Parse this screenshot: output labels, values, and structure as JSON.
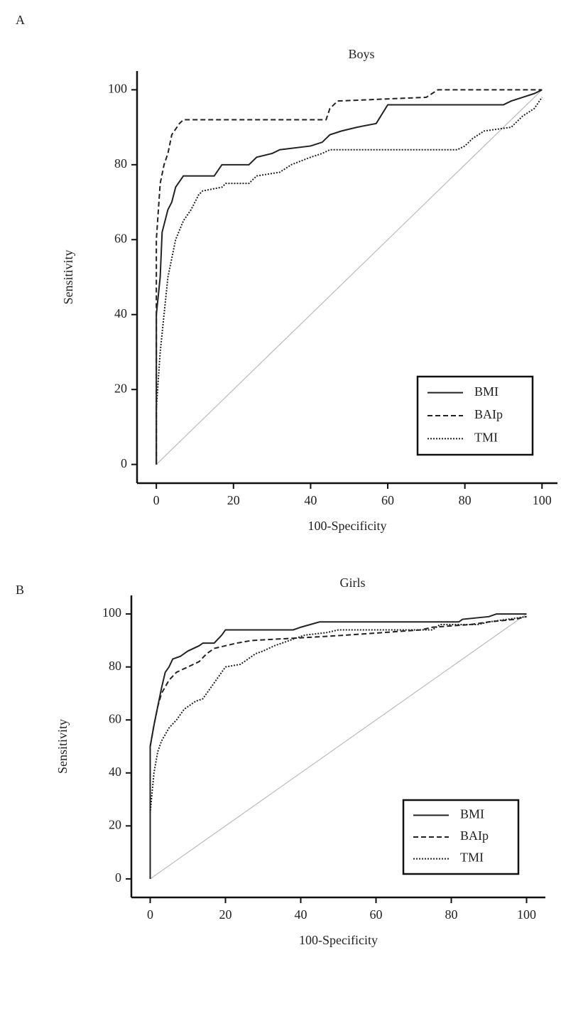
{
  "chart_data": [
    {
      "type": "line",
      "panel": "A",
      "title": "Boys",
      "x_label": "100-Specificity",
      "y_label": "Sensitivity",
      "xlim": [
        -5,
        104
      ],
      "ylim": [
        -5,
        105
      ],
      "xticks": [
        0,
        20,
        40,
        60,
        80,
        100
      ],
      "yticks": [
        0,
        20,
        40,
        60,
        80,
        100
      ],
      "diagonal": true,
      "legend": "lower right",
      "series": [
        {
          "name": "BMI",
          "color": "#222222",
          "style": "solid",
          "x": [
            0,
            0,
            0,
            1,
            1.5,
            3,
            4,
            5,
            7,
            15,
            17,
            24,
            26,
            30,
            32,
            40,
            43,
            45,
            48,
            52,
            57,
            60,
            90,
            92,
            95,
            98,
            100
          ],
          "values": [
            0,
            20,
            40,
            50,
            62,
            68,
            70,
            74,
            77,
            77,
            80,
            80,
            82,
            83,
            84,
            85,
            86,
            88,
            89,
            90,
            91,
            96,
            96,
            97,
            98,
            99,
            100
          ]
        },
        {
          "name": "BAIp",
          "color": "#222222",
          "style": "dashed",
          "x": [
            0,
            0,
            0,
            1,
            2,
            3,
            4,
            6,
            7,
            44,
            45,
            47,
            70,
            73,
            100
          ],
          "values": [
            0,
            40,
            60,
            75,
            80,
            83,
            88,
            91,
            92,
            92,
            95,
            97,
            98,
            100,
            100
          ]
        },
        {
          "name": "TMI",
          "color": "#222222",
          "style": "dotted",
          "x": [
            0,
            0,
            1,
            2,
            3,
            5,
            7,
            9,
            11,
            12,
            17,
            18,
            24,
            26,
            32,
            35,
            40,
            43,
            45,
            78,
            80,
            82,
            85,
            92,
            95,
            98,
            100
          ],
          "values": [
            0,
            15,
            30,
            40,
            50,
            60,
            65,
            68,
            72,
            73,
            74,
            75,
            75,
            77,
            78,
            80,
            82,
            83,
            84,
            84,
            85,
            87,
            89,
            90,
            93,
            95,
            98
          ]
        }
      ]
    },
    {
      "type": "line",
      "panel": "B",
      "title": "Girls",
      "x_label": "100-Specificity",
      "y_label": "Sensitivity",
      "xlim": [
        -5,
        105
      ],
      "ylim": [
        -7,
        107
      ],
      "xticks": [
        0,
        20,
        40,
        60,
        80,
        100
      ],
      "yticks": [
        0,
        20,
        40,
        60,
        80,
        100
      ],
      "diagonal": true,
      "legend": "lower right",
      "series": [
        {
          "name": "BMI",
          "color": "#222222",
          "style": "solid",
          "x": [
            0,
            0,
            0,
            1,
            2,
            3,
            4,
            5,
            6,
            8,
            10,
            13,
            14,
            17,
            19,
            20,
            38,
            40,
            45,
            82,
            83,
            90,
            92,
            100
          ],
          "values": [
            0,
            20,
            50,
            58,
            65,
            72,
            78,
            80,
            83,
            84,
            86,
            88,
            89,
            89,
            92,
            94,
            94,
            95,
            97,
            97,
            98,
            99,
            100,
            100
          ]
        },
        {
          "name": "BAIp",
          "color": "#222222",
          "style": "dashed",
          "x": [
            0,
            0,
            0,
            1,
            2,
            3,
            5,
            7,
            10,
            13,
            15,
            17,
            20,
            23,
            27,
            40,
            52,
            72,
            75,
            85,
            90,
            97,
            100
          ],
          "values": [
            0,
            25,
            50,
            58,
            65,
            70,
            75,
            78,
            80,
            82,
            85,
            87,
            88,
            89,
            90,
            91,
            92,
            94,
            95,
            96,
            97,
            98,
            99
          ]
        },
        {
          "name": "TMI",
          "color": "#222222",
          "style": "dotted",
          "x": [
            0,
            0,
            0,
            1,
            2,
            3,
            5,
            7,
            9,
            12,
            14,
            16,
            18,
            20,
            24,
            26,
            28,
            30,
            33,
            37,
            41,
            47,
            50,
            75,
            77,
            87,
            90,
            100
          ],
          "values": [
            0,
            15,
            25,
            40,
            48,
            52,
            57,
            60,
            64,
            67,
            68,
            72,
            76,
            80,
            81,
            83,
            85,
            86,
            88,
            90,
            92,
            93,
            94,
            94,
            96,
            96,
            97,
            99
          ]
        }
      ]
    }
  ]
}
